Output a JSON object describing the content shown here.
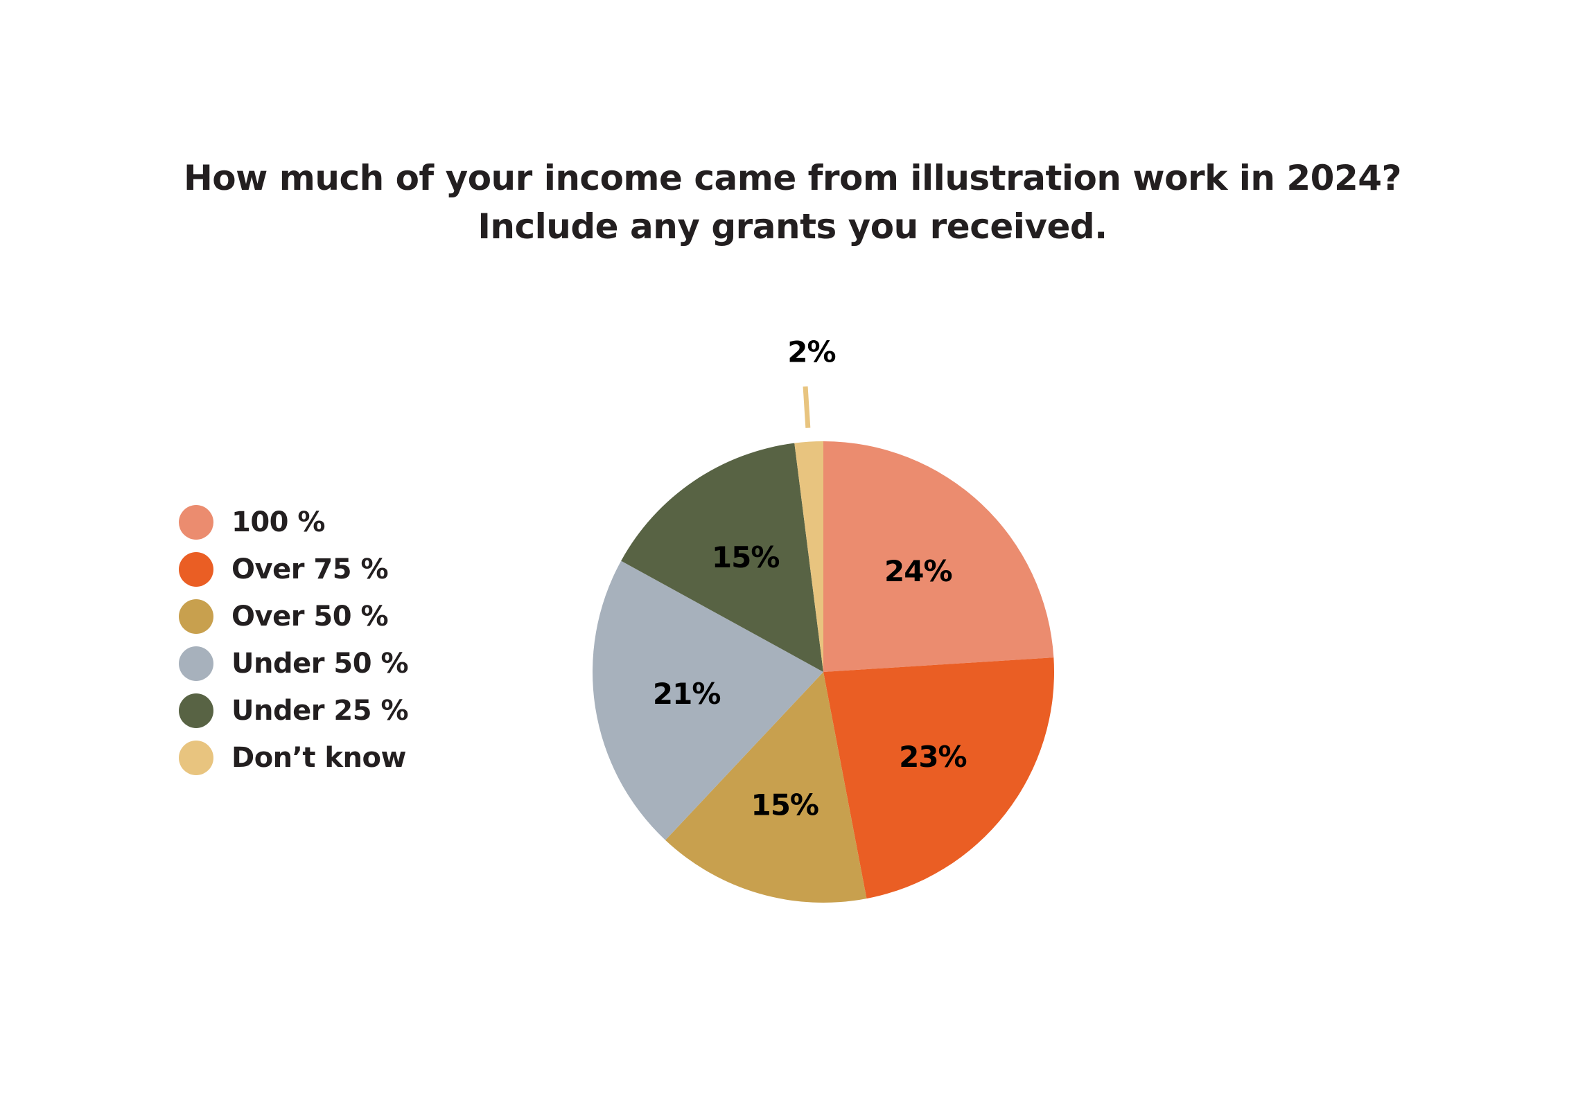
{
  "title": {
    "line1": "How much of your income came from illustration work in 2024?",
    "line2": "Include any grants you received."
  },
  "chart_data": {
    "type": "pie",
    "title": "How much of your income came from illustration work in 2024? Include any grants you received.",
    "legend_position": "left",
    "slices": [
      {
        "label": "100 %",
        "value": 24,
        "display": "24%",
        "color": "#eb8c6f"
      },
      {
        "label": "Over 75 %",
        "value": 23,
        "display": "23%",
        "color": "#ea5e24"
      },
      {
        "label": "Over 50 %",
        "value": 15,
        "display": "15%",
        "color": "#c8a04e"
      },
      {
        "label": "Under 50 %",
        "value": 21,
        "display": "21%",
        "color": "#a7b1bc"
      },
      {
        "label": "Under 25 %",
        "value": 15,
        "display": "15%",
        "color": "#586344"
      },
      {
        "label": "Don’t know",
        "value": 2,
        "display": "2%",
        "color": "#e8c47f"
      }
    ]
  }
}
